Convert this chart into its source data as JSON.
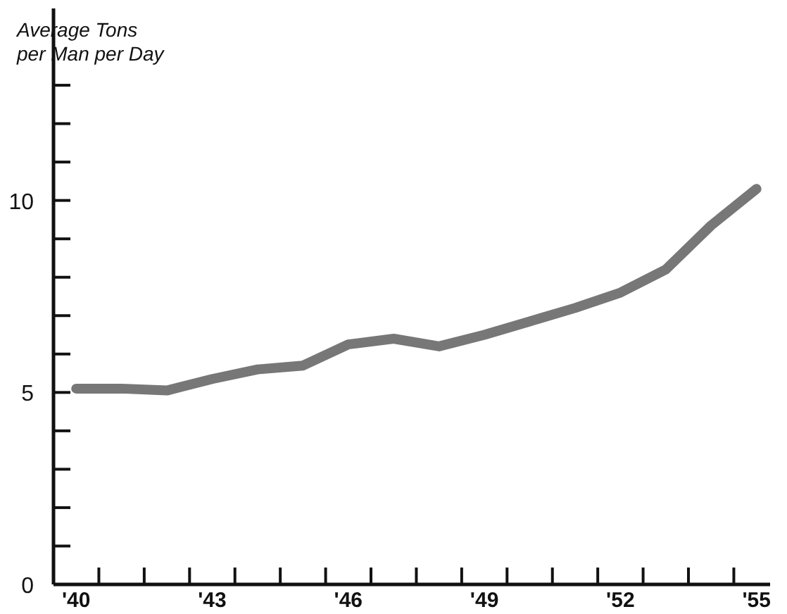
{
  "chart_data": {
    "type": "line",
    "ylabel": "Average Tons\nper Man per Day",
    "x": [
      1940,
      1941,
      1942,
      1943,
      1944,
      1945,
      1946,
      1947,
      1948,
      1949,
      1950,
      1951,
      1952,
      1953,
      1954,
      1955
    ],
    "series": [
      {
        "color": "#777777",
        "values": [
          5.1,
          5.1,
          5.05,
          5.35,
          5.6,
          5.7,
          6.25,
          6.4,
          6.2,
          6.5,
          6.85,
          7.2,
          7.6,
          8.2,
          9.35,
          10.3
        ]
      }
    ],
    "xlim": [
      1939.5,
      1955.3
    ],
    "xticks": [
      {
        "value": 1940,
        "label": "'40"
      },
      {
        "value": 1943,
        "label": "'43"
      },
      {
        "value": 1946,
        "label": "'46"
      },
      {
        "value": 1949,
        "label": "'49"
      },
      {
        "value": 1952,
        "label": "'52"
      },
      {
        "value": 1955,
        "label": "'55"
      },
      {
        "value": 1940.5,
        "label": null
      },
      {
        "value": 1941.5,
        "label": null
      },
      {
        "value": 1942.5,
        "label": null
      },
      {
        "value": 1943.5,
        "label": null
      },
      {
        "value": 1944.5,
        "label": null
      },
      {
        "value": 1945.5,
        "label": null
      },
      {
        "value": 1946.5,
        "label": null
      },
      {
        "value": 1947.5,
        "label": null
      },
      {
        "value": 1948.5,
        "label": null
      },
      {
        "value": 1949.5,
        "label": null
      },
      {
        "value": 1950.5,
        "label": null
      },
      {
        "value": 1951.5,
        "label": null
      },
      {
        "value": 1952.5,
        "label": null
      },
      {
        "value": 1953.5,
        "label": null
      },
      {
        "value": 1954.5,
        "label": null
      }
    ],
    "ylim": [
      0,
      15
    ],
    "yticks": [
      0,
      {
        "value": 1,
        "label": null
      },
      {
        "value": 2,
        "label": null
      },
      {
        "value": 3,
        "label": null
      },
      {
        "value": 4,
        "label": null
      },
      5,
      {
        "value": 6,
        "label": null
      },
      {
        "value": 7,
        "label": null
      },
      {
        "value": 8,
        "label": null
      },
      {
        "value": 9,
        "label": null
      },
      10,
      {
        "value": 11,
        "label": null
      },
      {
        "value": 12,
        "label": null
      },
      {
        "value": 13,
        "label": null
      }
    ],
    "grid": false,
    "legend": false,
    "marker": "none",
    "line_style": "solid"
  }
}
